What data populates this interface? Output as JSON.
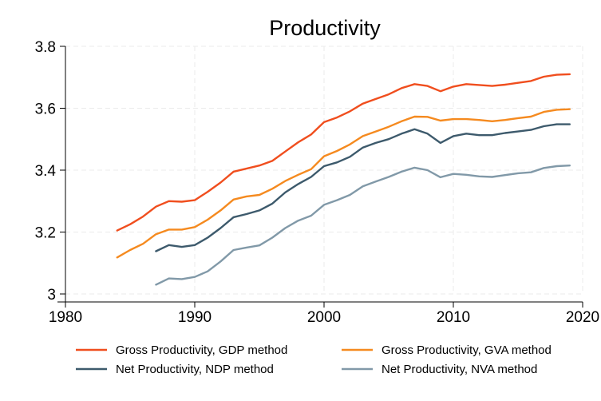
{
  "chart_data": {
    "type": "line",
    "title": "Productivity",
    "xlabel": "",
    "ylabel": "",
    "xlim": [
      1980,
      2020
    ],
    "ylim": [
      3.0,
      3.8
    ],
    "x_ticks": [
      1980,
      1990,
      2000,
      2010,
      2020
    ],
    "y_ticks": [
      3.0,
      3.2,
      3.4,
      3.6,
      3.8
    ],
    "y_tick_labels": [
      "3",
      "3.2",
      "3.4",
      "3.6",
      "3.8"
    ],
    "grid": true,
    "legend_position": "bottom",
    "series": [
      {
        "name": "Gross Productivity, GDP method",
        "color": "#f04e1e",
        "x": [
          1984,
          1985,
          1986,
          1987,
          1988,
          1989,
          1990,
          1991,
          1992,
          1993,
          1994,
          1995,
          1996,
          1997,
          1998,
          1999,
          2000,
          2001,
          2002,
          2003,
          2004,
          2005,
          2006,
          2007,
          2008,
          2009,
          2010,
          2011,
          2012,
          2013,
          2014,
          2015,
          2016,
          2017,
          2018,
          2019
        ],
        "y": [
          3.205,
          3.225,
          3.25,
          3.282,
          3.3,
          3.298,
          3.303,
          3.33,
          3.36,
          3.395,
          3.405,
          3.415,
          3.43,
          3.46,
          3.49,
          3.515,
          3.555,
          3.57,
          3.59,
          3.615,
          3.63,
          3.645,
          3.665,
          3.678,
          3.672,
          3.655,
          3.67,
          3.678,
          3.675,
          3.672,
          3.676,
          3.682,
          3.688,
          3.702,
          3.708,
          3.71
        ]
      },
      {
        "name": "Gross Productivity, GVA method",
        "color": "#f58a1f",
        "x": [
          1984,
          1985,
          1986,
          1987,
          1988,
          1989,
          1990,
          1991,
          1992,
          1993,
          1994,
          1995,
          1996,
          1997,
          1998,
          1999,
          2000,
          2001,
          2002,
          2003,
          2004,
          2005,
          2006,
          2007,
          2008,
          2009,
          2010,
          2011,
          2012,
          2013,
          2014,
          2015,
          2016,
          2017,
          2018,
          2019
        ],
        "y": [
          3.118,
          3.142,
          3.162,
          3.193,
          3.208,
          3.208,
          3.216,
          3.24,
          3.27,
          3.305,
          3.315,
          3.32,
          3.34,
          3.365,
          3.385,
          3.403,
          3.445,
          3.462,
          3.483,
          3.51,
          3.525,
          3.54,
          3.558,
          3.573,
          3.572,
          3.56,
          3.565,
          3.565,
          3.562,
          3.558,
          3.562,
          3.568,
          3.573,
          3.588,
          3.595,
          3.597
        ]
      },
      {
        "name": "Net Productivity, NDP method",
        "color": "#3d5a6c",
        "x": [
          1987,
          1988,
          1989,
          1990,
          1991,
          1992,
          1993,
          1994,
          1995,
          1996,
          1997,
          1998,
          1999,
          2000,
          2001,
          2002,
          2003,
          2004,
          2005,
          2006,
          2007,
          2008,
          2009,
          2010,
          2011,
          2012,
          2013,
          2014,
          2015,
          2016,
          2017,
          2018,
          2019
        ],
        "y": [
          3.138,
          3.158,
          3.152,
          3.158,
          3.182,
          3.213,
          3.248,
          3.258,
          3.27,
          3.292,
          3.328,
          3.355,
          3.378,
          3.413,
          3.425,
          3.443,
          3.473,
          3.488,
          3.5,
          3.518,
          3.532,
          3.518,
          3.488,
          3.51,
          3.518,
          3.513,
          3.513,
          3.52,
          3.525,
          3.53,
          3.542,
          3.548,
          3.548
        ]
      },
      {
        "name": "Net Productivity, NVA method",
        "color": "#8199a8",
        "x": [
          1987,
          1988,
          1989,
          1990,
          1991,
          1992,
          1993,
          1994,
          1995,
          1996,
          1997,
          1998,
          1999,
          2000,
          2001,
          2002,
          2003,
          2004,
          2005,
          2006,
          2007,
          2008,
          2009,
          2010,
          2011,
          2012,
          2013,
          2014,
          2015,
          2016,
          2017,
          2018,
          2019
        ],
        "y": [
          3.03,
          3.05,
          3.048,
          3.055,
          3.073,
          3.105,
          3.142,
          3.15,
          3.157,
          3.182,
          3.213,
          3.237,
          3.253,
          3.288,
          3.303,
          3.32,
          3.348,
          3.363,
          3.378,
          3.395,
          3.408,
          3.4,
          3.377,
          3.388,
          3.385,
          3.38,
          3.378,
          3.384,
          3.39,
          3.393,
          3.407,
          3.413,
          3.415
        ]
      }
    ]
  }
}
